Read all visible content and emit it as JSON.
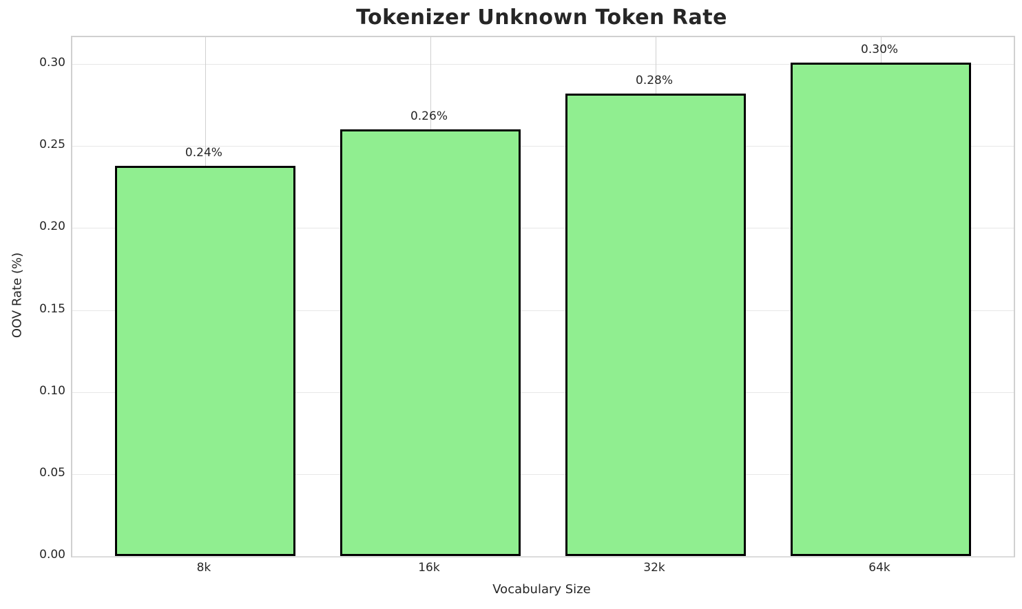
{
  "chart_data": {
    "type": "bar",
    "title": "Tokenizer Unknown Token Rate",
    "xlabel": "Vocabulary Size",
    "ylabel": "OOV Rate (%)",
    "categories": [
      "8k",
      "16k",
      "32k",
      "64k"
    ],
    "values": [
      0.238,
      0.26,
      0.282,
      0.301
    ],
    "bar_labels": [
      "0.24%",
      "0.26%",
      "0.28%",
      "0.30%"
    ],
    "y_ticks": [
      {
        "value": 0.0,
        "label": "0.00"
      },
      {
        "value": 0.05,
        "label": "0.05"
      },
      {
        "value": 0.1,
        "label": "0.10"
      },
      {
        "value": 0.15,
        "label": "0.15"
      },
      {
        "value": 0.2,
        "label": "0.20"
      },
      {
        "value": 0.25,
        "label": "0.25"
      },
      {
        "value": 0.3,
        "label": "0.30"
      }
    ],
    "ylim": [
      0,
      0.3164
    ],
    "grid": true,
    "legend": null,
    "colors": {
      "bar_fill": "#90EE90",
      "bar_edge": "#000000",
      "grid_horizontal": "#e7e7e7",
      "grid_vertical": "#cfcfcf",
      "spine": "#d0d0d0",
      "text": "#262626"
    }
  }
}
